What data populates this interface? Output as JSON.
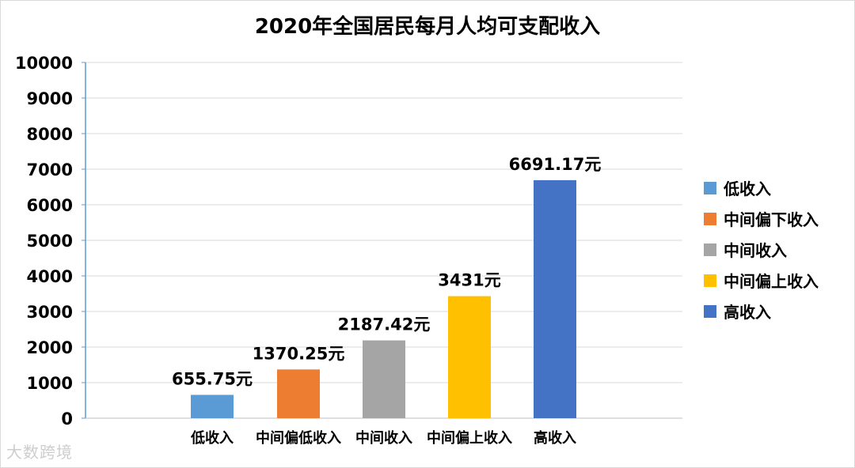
{
  "chart_data": {
    "type": "bar",
    "title": "2020年全国居民每月人均可支配收入",
    "categories": [
      "低收入",
      "中间偏低收入",
      "中间收入",
      "中间偏上收入",
      "高收入"
    ],
    "values": [
      655.75,
      1370.25,
      2187.42,
      3431,
      6691.17
    ],
    "data_labels": [
      "655.75元",
      "1370.25元",
      "2187.42元",
      "3431元",
      "6691.17元"
    ],
    "colors": [
      "#5b9bd5",
      "#ed7d31",
      "#a5a5a5",
      "#ffc000",
      "#4472c4"
    ],
    "legend": [
      "低收入",
      "中间偏下收入",
      "中间收入",
      "中间偏上收入",
      "高收入"
    ],
    "legend_position": "right",
    "yticks": [
      "0",
      "1000",
      "2000",
      "3000",
      "4000",
      "5000",
      "6000",
      "7000",
      "8000",
      "9000",
      "10000"
    ],
    "ylim": [
      0,
      10000
    ],
    "grid": true
  },
  "watermark": "大数跨境"
}
